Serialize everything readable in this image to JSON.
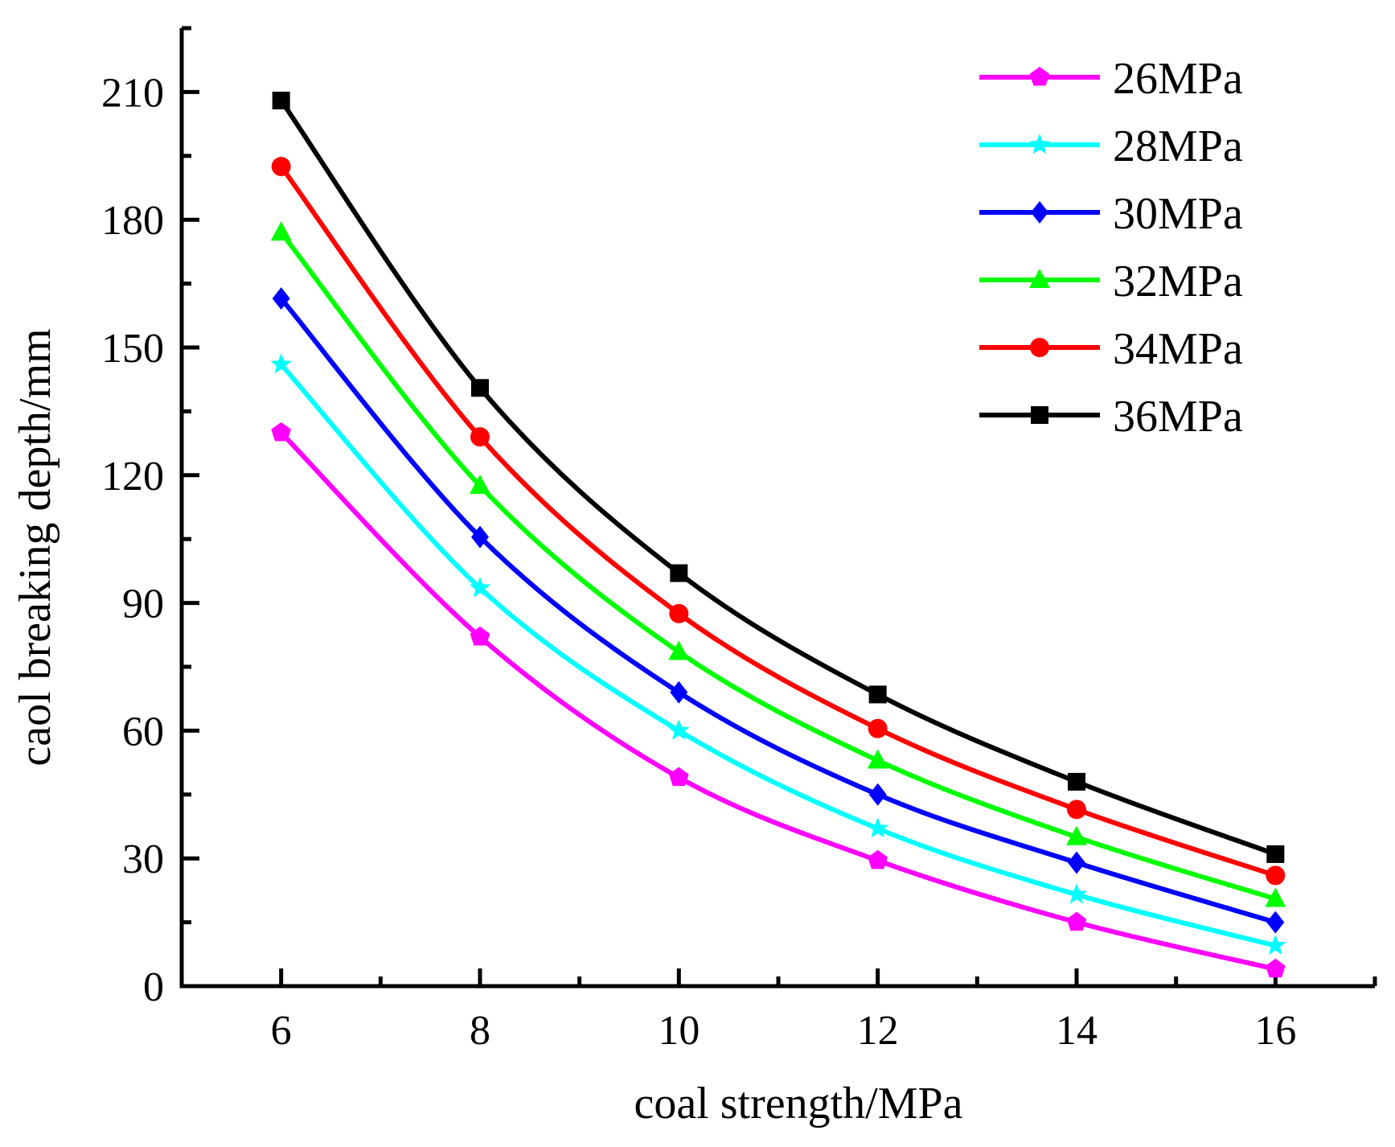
{
  "chart_data": {
    "type": "line",
    "title": "",
    "xlabel": "coal strength/MPa",
    "ylabel": "caol breaking depth/mm",
    "xlim": [
      5,
      17
    ],
    "ylim": [
      0,
      225
    ],
    "xticks": [
      6,
      8,
      10,
      12,
      14,
      16
    ],
    "yticks": [
      0,
      30,
      60,
      90,
      120,
      150,
      180,
      210
    ],
    "legend_position": "top-right",
    "grid": false,
    "x": [
      6,
      8,
      10,
      12,
      14,
      16
    ],
    "series": [
      {
        "name": "26MPa",
        "color": "#ff00ff",
        "marker": "pentagon",
        "values": [
          130,
          82,
          49,
          29.5,
          15,
          4
        ]
      },
      {
        "name": "28MPa",
        "color": "#00ffff",
        "marker": "star",
        "values": [
          146,
          93.5,
          60,
          37,
          21.5,
          9.5
        ]
      },
      {
        "name": "30MPa",
        "color": "#0000ff",
        "marker": "diamond",
        "values": [
          161.5,
          105.5,
          69,
          45,
          29,
          15
        ]
      },
      {
        "name": "32MPa",
        "color": "#00ff00",
        "marker": "triangle",
        "values": [
          177,
          117.5,
          78.5,
          53,
          35,
          20.5
        ]
      },
      {
        "name": "34MPa",
        "color": "#ff0000",
        "marker": "circle",
        "values": [
          192.5,
          129,
          87.5,
          60.5,
          41.5,
          26
        ]
      },
      {
        "name": "36MPa",
        "color": "#000000",
        "marker": "square",
        "values": [
          208,
          140.5,
          97,
          68.5,
          48,
          31
        ]
      }
    ]
  }
}
